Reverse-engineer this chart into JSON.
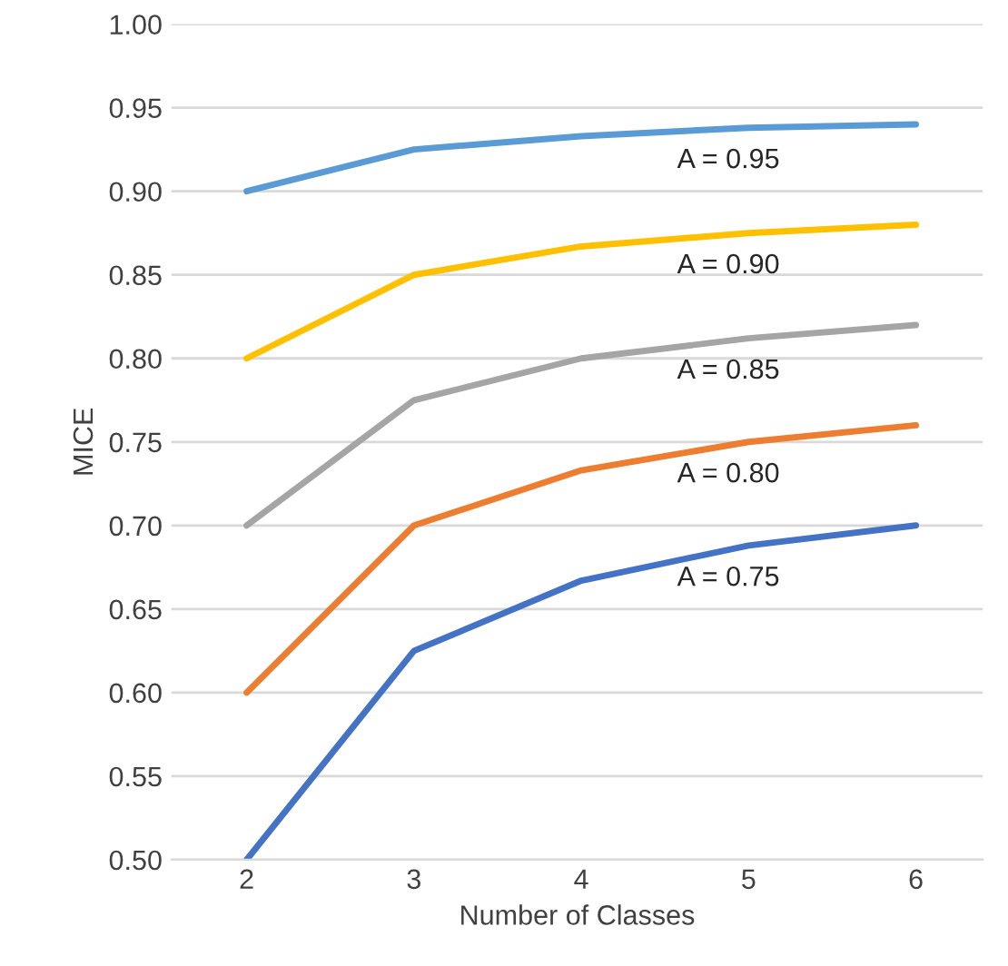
{
  "chart_data": {
    "type": "line",
    "xlabel": "Number of Classes",
    "ylabel": "MICE",
    "categories": [
      "2",
      "3",
      "4",
      "5",
      "6"
    ],
    "series": [
      {
        "name": "A = 0.95",
        "color": "#5b9bd5",
        "values": [
          0.9,
          0.925,
          0.933,
          0.938,
          0.94
        ]
      },
      {
        "name": "A = 0.90",
        "color": "#ffc000",
        "values": [
          0.8,
          0.85,
          0.867,
          0.875,
          0.88
        ]
      },
      {
        "name": "A = 0.85",
        "color": "#a5a5a5",
        "values": [
          0.7,
          0.775,
          0.8,
          0.812,
          0.82
        ]
      },
      {
        "name": "A = 0.80",
        "color": "#ed7d31",
        "values": [
          0.6,
          0.7,
          0.733,
          0.75,
          0.76
        ]
      },
      {
        "name": "A = 0.75",
        "color": "#4472c4",
        "values": [
          0.5,
          0.625,
          0.667,
          0.688,
          0.7
        ]
      }
    ],
    "ylim": [
      0.5,
      1.0
    ],
    "yticks": [
      {
        "value": 0.5,
        "label": "0.50"
      },
      {
        "value": 0.55,
        "label": "0.55"
      },
      {
        "value": 0.6,
        "label": "0.60"
      },
      {
        "value": 0.65,
        "label": "0.65"
      },
      {
        "value": 0.7,
        "label": "0.70"
      },
      {
        "value": 0.75,
        "label": "0.75"
      },
      {
        "value": 0.8,
        "label": "0.80"
      },
      {
        "value": 0.85,
        "label": "0.85"
      },
      {
        "value": 0.9,
        "label": "0.90"
      },
      {
        "value": 0.95,
        "label": "0.95"
      },
      {
        "value": 1.0,
        "label": "1.00"
      }
    ],
    "grid": "y",
    "legend": false,
    "marker": "none",
    "line_style": "solid"
  }
}
